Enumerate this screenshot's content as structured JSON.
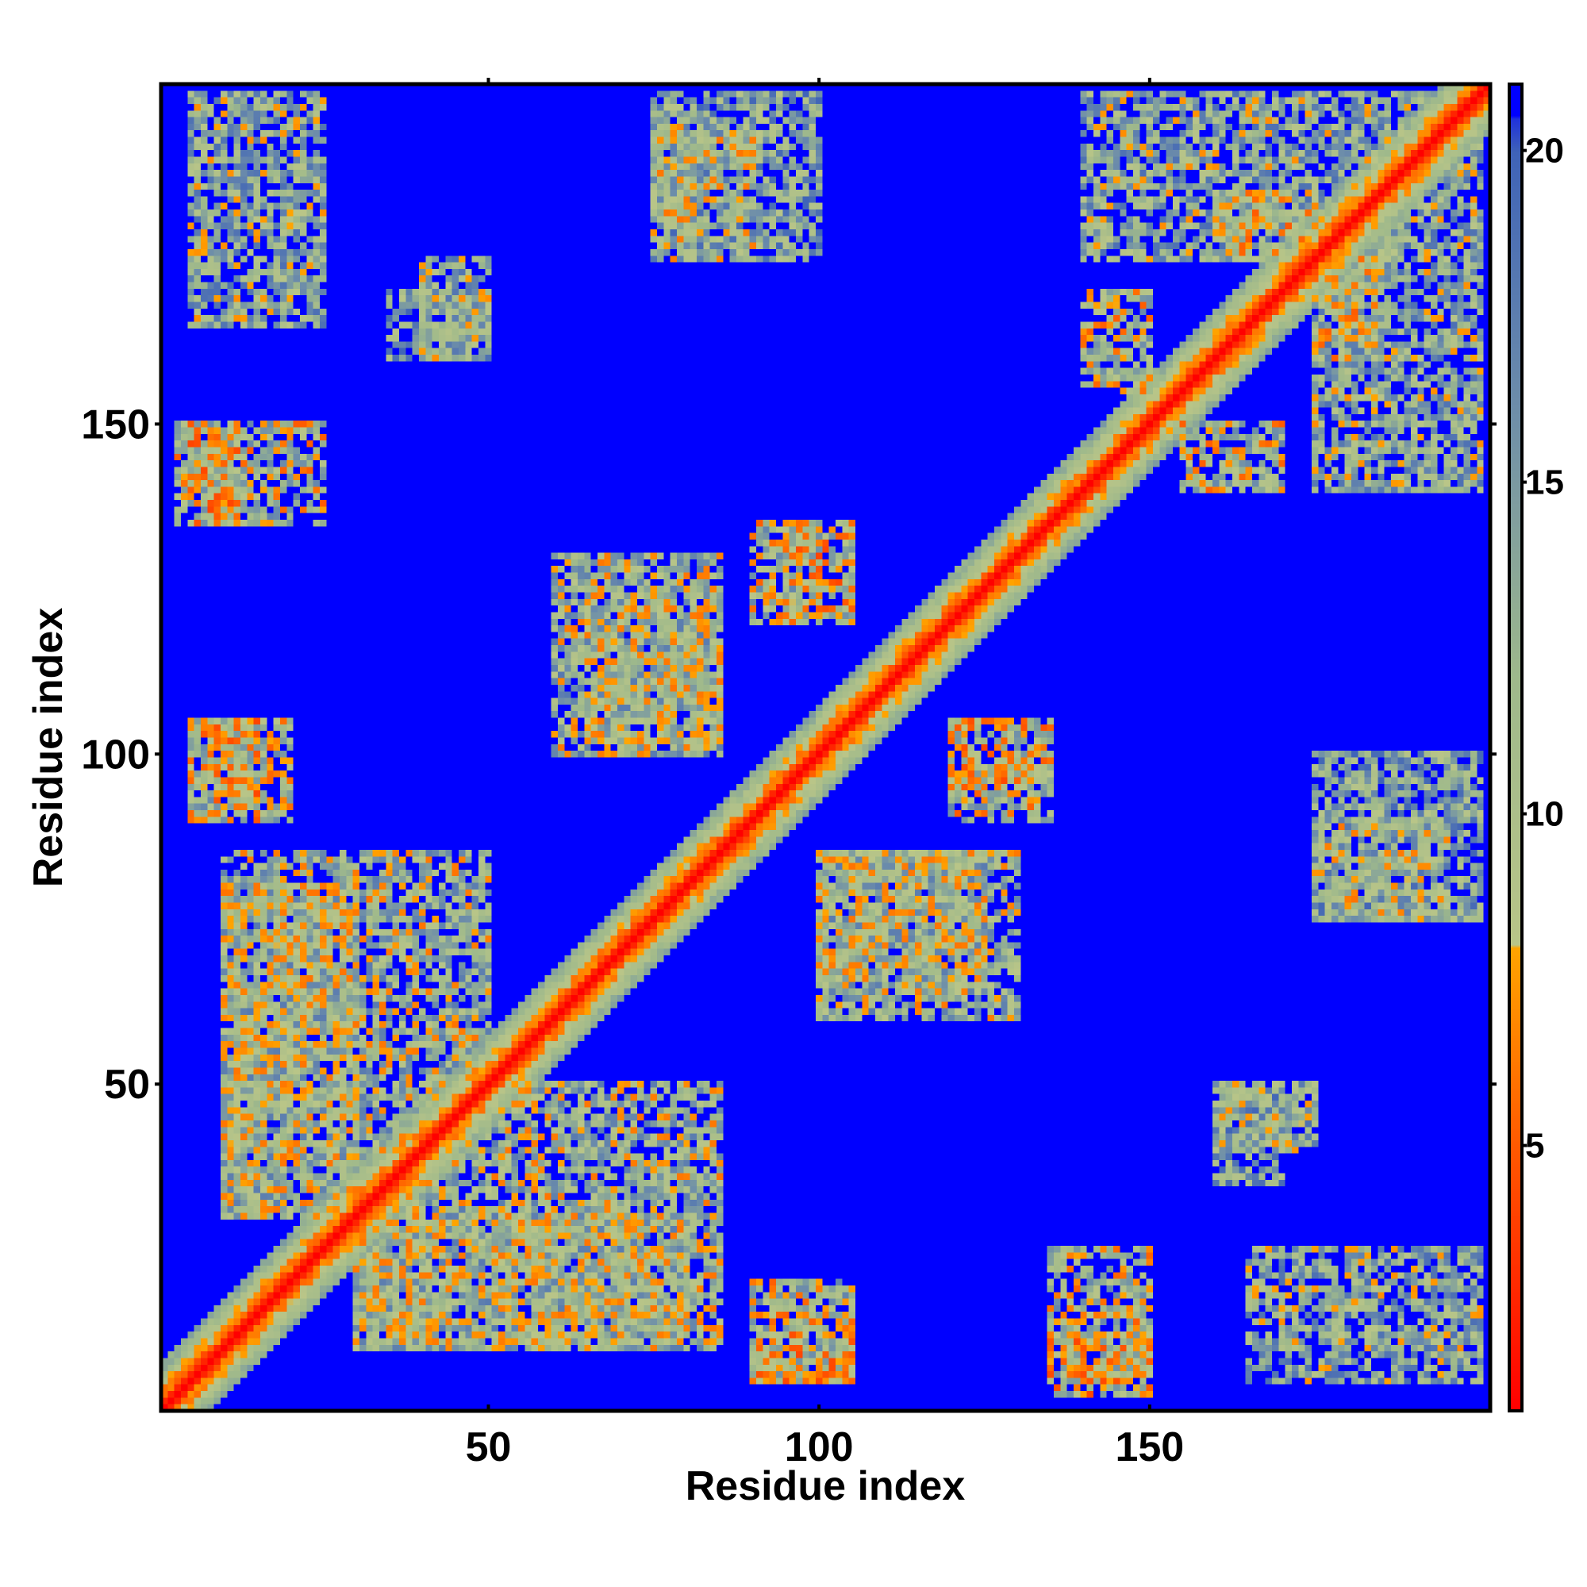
{
  "chart_data": {
    "type": "heatmap",
    "title": "",
    "xlabel": "Residue index",
    "ylabel": "Residue index",
    "xlim": [
      1,
      201
    ],
    "ylim": [
      1,
      201
    ],
    "x_ticks": [
      50,
      100,
      150
    ],
    "y_ticks": [
      50,
      100,
      150
    ],
    "colorbar": {
      "ticks": [
        5,
        10,
        15,
        20
      ],
      "range": [
        1,
        21
      ],
      "stops": [
        {
          "value": 1,
          "color": "#ff0000"
        },
        {
          "value": 5,
          "color": "#ff5a00"
        },
        {
          "value": 8,
          "color": "#ffa500"
        },
        {
          "value": 8.01,
          "color": "#b9c588"
        },
        {
          "value": 12,
          "color": "#9fb98b"
        },
        {
          "value": 16,
          "color": "#6f8fa9"
        },
        {
          "value": 20,
          "color": "#3f63b8"
        },
        {
          "value": 21,
          "color": "#0000ff"
        }
      ],
      "background_color": "#0000ff"
    },
    "description_values": {
      "diagonal_distance": 1,
      "max_distance": 21
    },
    "contact_blocks": [
      {
        "x": [
          5,
          25
        ],
        "y": [
          165,
          200
        ],
        "level": 13
      },
      {
        "x": [
          75,
          100
        ],
        "y": [
          175,
          200
        ],
        "level": 14
      },
      {
        "x": [
          140,
          200
        ],
        "y": [
          175,
          200
        ],
        "level": 13
      },
      {
        "x": [
          5,
          25
        ],
        "y": [
          135,
          150
        ],
        "level": 11
      },
      {
        "x": [
          5,
          20
        ],
        "y": [
          90,
          105
        ],
        "level": 11
      },
      {
        "x": [
          35,
          50
        ],
        "y": [
          160,
          170
        ],
        "level": 14
      },
      {
        "x": [
          90,
          100
        ],
        "y": [
          120,
          135
        ],
        "level": 11
      },
      {
        "x": [
          60,
          85
        ],
        "y": [
          100,
          130
        ],
        "level": 12
      },
      {
        "x": [
          10,
          50
        ],
        "y": [
          30,
          85
        ],
        "level": 12
      },
      {
        "x": [
          30,
          80
        ],
        "y": [
          10,
          30
        ],
        "level": 12
      },
      {
        "x": [
          90,
          105
        ],
        "y": [
          5,
          15
        ],
        "level": 10
      },
      {
        "x": [
          135,
          150
        ],
        "y": [
          3,
          12
        ],
        "level": 10
      },
      {
        "x": [
          160,
          175
        ],
        "y": [
          40,
          50
        ],
        "level": 13
      },
      {
        "x": [
          120,
          135
        ],
        "y": [
          95,
          105
        ],
        "level": 10
      },
      {
        "x": [
          100,
          125
        ],
        "y": [
          65,
          85
        ],
        "level": 12
      },
      {
        "x": [
          175,
          195
        ],
        "y": [
          75,
          90
        ],
        "level": 12
      },
      {
        "x": [
          155,
          170
        ],
        "y": [
          140,
          150
        ],
        "level": 11
      },
      {
        "x": [
          160,
          175
        ],
        "y": [
          175,
          185
        ],
        "level": 11
      }
    ]
  }
}
